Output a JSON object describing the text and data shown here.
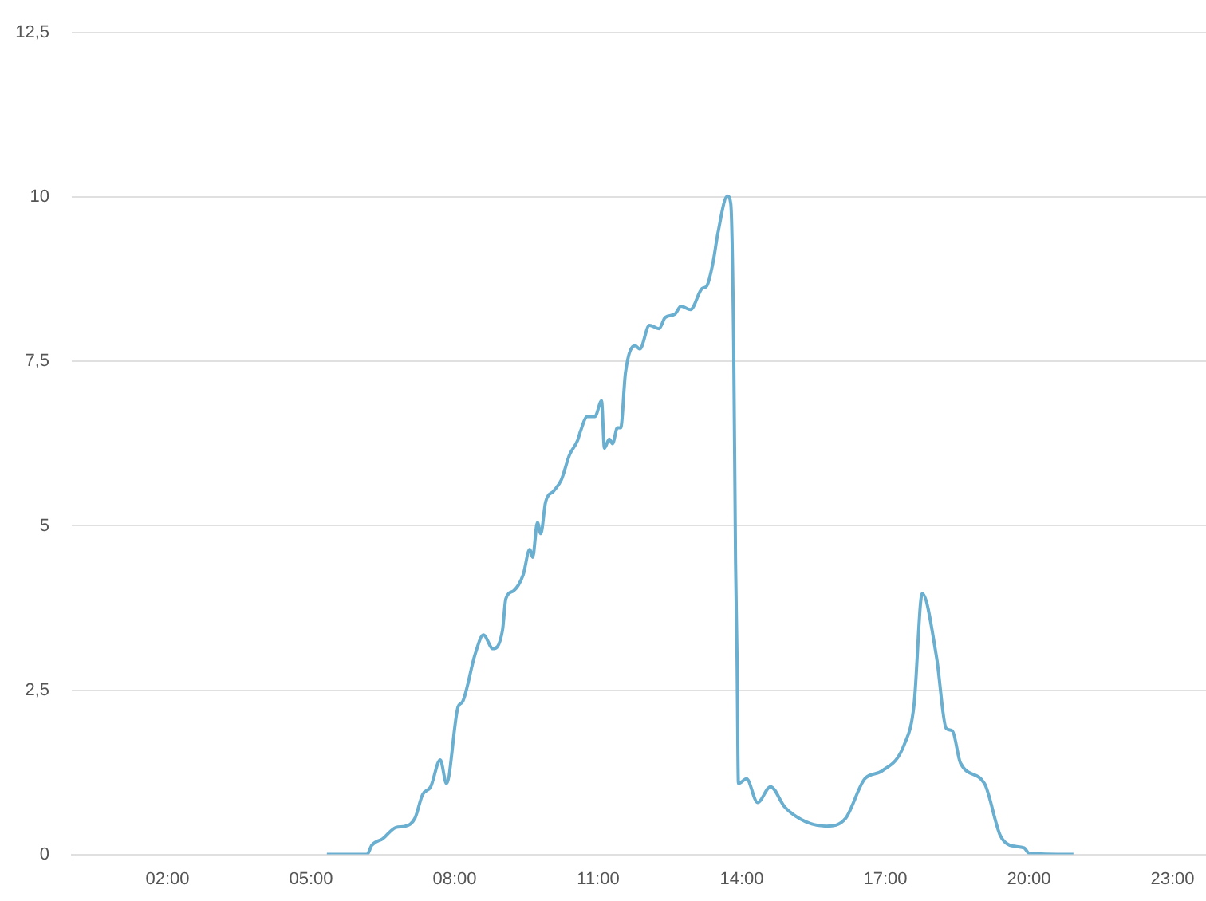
{
  "chart_data": {
    "type": "line",
    "x": [
      5.33,
      6.17,
      6.27,
      6.5,
      6.77,
      6.97,
      7.17,
      7.33,
      7.5,
      7.7,
      7.83,
      8.07,
      8.17,
      8.43,
      8.6,
      8.8,
      9.0,
      9.07,
      9.23,
      9.43,
      9.57,
      9.63,
      9.73,
      9.8,
      9.9,
      10.07,
      10.23,
      10.4,
      10.57,
      10.63,
      10.77,
      10.93,
      11.07,
      11.13,
      11.23,
      11.3,
      11.4,
      11.47,
      11.57,
      11.77,
      11.87,
      12.07,
      12.27,
      12.4,
      12.6,
      12.73,
      12.93,
      13.17,
      13.27,
      13.4,
      13.5,
      13.7,
      13.77,
      13.83,
      13.87,
      13.9,
      13.93,
      14.1,
      14.33,
      14.6,
      14.9,
      15.33,
      15.77,
      16.17,
      16.57,
      16.93,
      17.4,
      17.6,
      17.77,
      18.07,
      18.27,
      18.4,
      18.57,
      19.07,
      19.4,
      19.6,
      19.9,
      20.0,
      20.93
    ],
    "series": [
      {
        "color": "#6aaed0",
        "values": [
          0,
          0,
          0.14,
          0.24,
          0.41,
          0.43,
          0.55,
          0.91,
          1.03,
          1.44,
          1.08,
          2.24,
          2.33,
          3.05,
          3.34,
          3.13,
          3.41,
          3.89,
          4.01,
          4.25,
          4.64,
          4.52,
          5.05,
          4.88,
          5.36,
          5.53,
          5.7,
          6.08,
          6.3,
          6.44,
          6.66,
          6.66,
          6.9,
          6.18,
          6.32,
          6.25,
          6.49,
          6.49,
          7.33,
          7.74,
          7.69,
          8.05,
          8.0,
          8.17,
          8.22,
          8.34,
          8.29,
          8.61,
          8.65,
          9.01,
          9.45,
          10.02,
          9.9,
          7.81,
          4.45,
          3.05,
          1.08,
          1.15,
          0.79,
          1.03,
          0.72,
          0.5,
          0.43,
          0.55,
          1.15,
          1.27,
          1.68,
          2.28,
          3.97,
          3.0,
          1.92,
          1.88,
          1.39,
          1.08,
          0.29,
          0.14,
          0.1,
          0.02,
          0
        ]
      }
    ],
    "xlim": [
      0,
      23.7
    ],
    "xticks": [
      {
        "value": 2,
        "label": "02:00"
      },
      {
        "value": 5,
        "label": "05:00"
      },
      {
        "value": 8,
        "label": "08:00"
      },
      {
        "value": 11,
        "label": "11:00"
      },
      {
        "value": 14,
        "label": "14:00"
      },
      {
        "value": 17,
        "label": "17:00"
      },
      {
        "value": 20,
        "label": "20:00"
      },
      {
        "value": 23,
        "label": "23:00"
      }
    ],
    "ylim": [
      0,
      12.5
    ],
    "yticks": [
      0,
      {
        "value": 2.5,
        "label": "2,5"
      },
      5,
      {
        "value": 7.5,
        "label": "7,5"
      },
      10,
      {
        "value": 12.5,
        "label": "12,5"
      }
    ],
    "grid": "y",
    "marker": "none",
    "line_style": "solid",
    "legend": false
  }
}
